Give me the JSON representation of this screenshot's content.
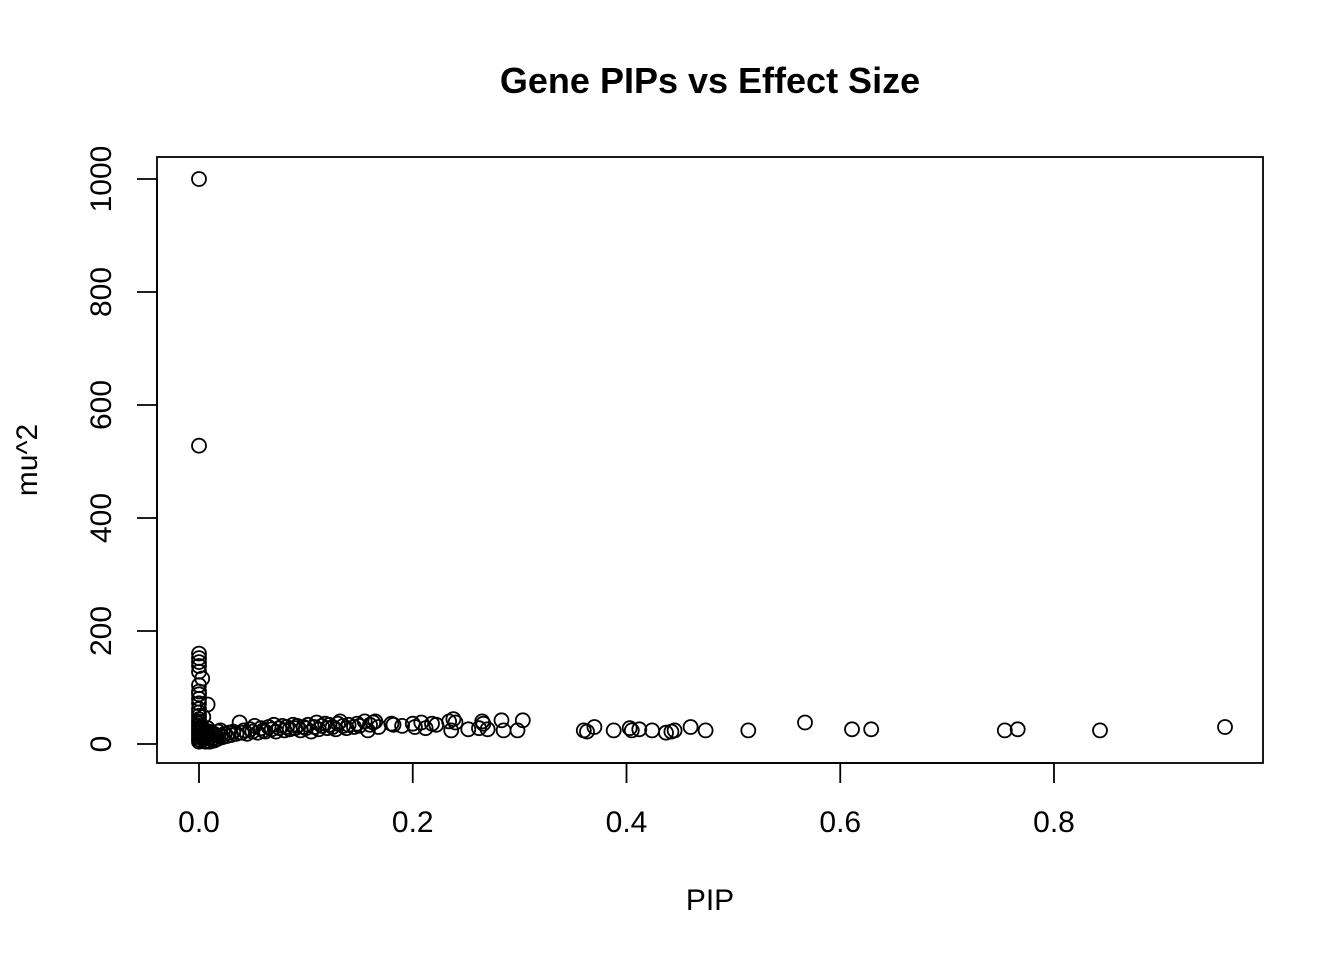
{
  "chart_data": {
    "type": "scatter",
    "title": "Gene PIPs vs Effect Size",
    "xlabel": "PIP",
    "ylabel": "mu^2",
    "xlim": [
      0,
      0.96
    ],
    "ylim": [
      0,
      1000
    ],
    "x_ticks": [
      0.0,
      0.2,
      0.4,
      0.6,
      0.8
    ],
    "x_tick_labels": [
      "0.0",
      "0.2",
      "0.4",
      "0.6",
      "0.8"
    ],
    "y_ticks": [
      0,
      200,
      400,
      600,
      800,
      1000
    ],
    "y_tick_labels": [
      "0",
      "200",
      "400",
      "600",
      "800",
      "1000"
    ],
    "grid": false,
    "legend": "none",
    "marker": "open-circle",
    "color": "#000000",
    "points": [
      [
        0.0,
        1000
      ],
      [
        0.0,
        528
      ],
      [
        0.0,
        160
      ],
      [
        0.0,
        152
      ],
      [
        0.0,
        145
      ],
      [
        0.0,
        138
      ],
      [
        0.0,
        128
      ],
      [
        0.003,
        116
      ],
      [
        0.0,
        104
      ],
      [
        0.0,
        93
      ],
      [
        0.0,
        88
      ],
      [
        0.0,
        80
      ],
      [
        0.0,
        72
      ],
      [
        0.008,
        70
      ],
      [
        0.0,
        62
      ],
      [
        0.0,
        56
      ],
      [
        0.0,
        50
      ],
      [
        0.004,
        48
      ],
      [
        0.0,
        44
      ],
      [
        0.0,
        40
      ],
      [
        0.0,
        36
      ],
      [
        0.0,
        32
      ],
      [
        0.0,
        28
      ],
      [
        0.0,
        24
      ],
      [
        0.0,
        20
      ],
      [
        0.0,
        16
      ],
      [
        0.0,
        12
      ],
      [
        0.0,
        8
      ],
      [
        0.0,
        4
      ],
      [
        0.002,
        30
      ],
      [
        0.002,
        22
      ],
      [
        0.002,
        14
      ],
      [
        0.002,
        6
      ],
      [
        0.004,
        26
      ],
      [
        0.004,
        18
      ],
      [
        0.004,
        10
      ],
      [
        0.006,
        24
      ],
      [
        0.006,
        12
      ],
      [
        0.006,
        4
      ],
      [
        0.008,
        28
      ],
      [
        0.008,
        16
      ],
      [
        0.008,
        6
      ],
      [
        0.01,
        22
      ],
      [
        0.01,
        12
      ],
      [
        0.01,
        4
      ],
      [
        0.012,
        20
      ],
      [
        0.012,
        8
      ],
      [
        0.014,
        18
      ],
      [
        0.014,
        6
      ],
      [
        0.016,
        16
      ],
      [
        0.016,
        8
      ],
      [
        0.018,
        22
      ],
      [
        0.018,
        10
      ],
      [
        0.02,
        14
      ],
      [
        0.02,
        24
      ],
      [
        0.022,
        12
      ],
      [
        0.024,
        18
      ],
      [
        0.026,
        14
      ],
      [
        0.028,
        20
      ],
      [
        0.03,
        16
      ],
      [
        0.032,
        22
      ],
      [
        0.035,
        18
      ],
      [
        0.038,
        38
      ],
      [
        0.04,
        20
      ],
      [
        0.042,
        24
      ],
      [
        0.045,
        18
      ],
      [
        0.048,
        26
      ],
      [
        0.05,
        22
      ],
      [
        0.052,
        32
      ],
      [
        0.055,
        20
      ],
      [
        0.058,
        28
      ],
      [
        0.06,
        24
      ],
      [
        0.062,
        22
      ],
      [
        0.065,
        30
      ],
      [
        0.068,
        26
      ],
      [
        0.07,
        34
      ],
      [
        0.072,
        22
      ],
      [
        0.075,
        28
      ],
      [
        0.078,
        32
      ],
      [
        0.08,
        24
      ],
      [
        0.082,
        30
      ],
      [
        0.085,
        26
      ],
      [
        0.088,
        34
      ],
      [
        0.09,
        28
      ],
      [
        0.092,
        32
      ],
      [
        0.095,
        24
      ],
      [
        0.098,
        30
      ],
      [
        0.1,
        28
      ],
      [
        0.102,
        34
      ],
      [
        0.105,
        22
      ],
      [
        0.108,
        30
      ],
      [
        0.11,
        38
      ],
      [
        0.112,
        26
      ],
      [
        0.115,
        32
      ],
      [
        0.118,
        36
      ],
      [
        0.12,
        28
      ],
      [
        0.122,
        34
      ],
      [
        0.125,
        30
      ],
      [
        0.128,
        26
      ],
      [
        0.13,
        36
      ],
      [
        0.132,
        40
      ],
      [
        0.135,
        32
      ],
      [
        0.138,
        28
      ],
      [
        0.14,
        34
      ],
      [
        0.145,
        30
      ],
      [
        0.148,
        36
      ],
      [
        0.15,
        32
      ],
      [
        0.155,
        40
      ],
      [
        0.158,
        24
      ],
      [
        0.16,
        34
      ],
      [
        0.163,
        38
      ],
      [
        0.165,
        40
      ],
      [
        0.168,
        30
      ],
      [
        0.18,
        36
      ],
      [
        0.182,
        34
      ],
      [
        0.19,
        32
      ],
      [
        0.2,
        36
      ],
      [
        0.202,
        30
      ],
      [
        0.208,
        38
      ],
      [
        0.212,
        28
      ],
      [
        0.218,
        36
      ],
      [
        0.222,
        34
      ],
      [
        0.234,
        40
      ],
      [
        0.236,
        24
      ],
      [
        0.238,
        44
      ],
      [
        0.24,
        38
      ],
      [
        0.252,
        26
      ],
      [
        0.262,
        28
      ],
      [
        0.265,
        40
      ],
      [
        0.266,
        36
      ],
      [
        0.27,
        26
      ],
      [
        0.283,
        42
      ],
      [
        0.285,
        24
      ],
      [
        0.298,
        24
      ],
      [
        0.303,
        42
      ],
      [
        0.36,
        24
      ],
      [
        0.363,
        22
      ],
      [
        0.37,
        30
      ],
      [
        0.388,
        24
      ],
      [
        0.403,
        28
      ],
      [
        0.405,
        24
      ],
      [
        0.412,
        26
      ],
      [
        0.424,
        24
      ],
      [
        0.437,
        20
      ],
      [
        0.442,
        22
      ],
      [
        0.445,
        24
      ],
      [
        0.46,
        30
      ],
      [
        0.474,
        24
      ],
      [
        0.514,
        24
      ],
      [
        0.567,
        38
      ],
      [
        0.611,
        26
      ],
      [
        0.629,
        26
      ],
      [
        0.754,
        24
      ],
      [
        0.766,
        26
      ],
      [
        0.843,
        24
      ],
      [
        0.96,
        30
      ]
    ]
  }
}
